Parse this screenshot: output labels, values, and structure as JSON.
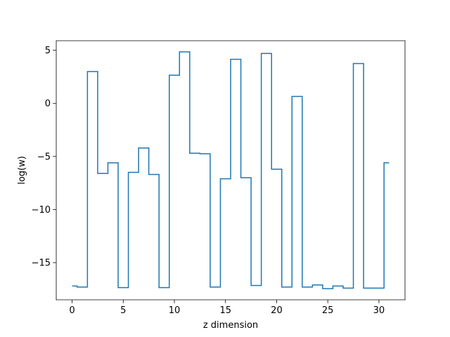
{
  "chart_data": {
    "type": "line",
    "drawstyle": "steps-mid",
    "title": "",
    "xlabel": "z dimension",
    "ylabel": "log(w)",
    "xlim": [
      -1.55,
      32.55
    ],
    "ylim": [
      -18.5,
      5.9
    ],
    "xticks": [
      0,
      5,
      10,
      15,
      20,
      25,
      30
    ],
    "yticks": [
      -15,
      -10,
      -5,
      0,
      5
    ],
    "ytick_labels": [
      "−15",
      "−10",
      "−5",
      "0",
      "5"
    ],
    "grid": false,
    "color": "#1f77b4",
    "series": [
      {
        "x": [
          0,
          1,
          2,
          3,
          4,
          5,
          6,
          7,
          8,
          9,
          10,
          11,
          12,
          13,
          14,
          15,
          16,
          17,
          18,
          19,
          20,
          21,
          22,
          23,
          24,
          25,
          26,
          27,
          28,
          29,
          30,
          31
        ],
        "y": [
          -17.2,
          -17.3,
          3.0,
          -6.6,
          -5.6,
          -17.35,
          -6.5,
          -4.2,
          -6.7,
          -17.35,
          2.65,
          4.85,
          -4.7,
          -4.75,
          -17.3,
          -7.1,
          4.15,
          -7.0,
          -17.15,
          4.7,
          -6.2,
          -17.3,
          0.65,
          -17.3,
          -17.1,
          -17.45,
          -17.2,
          -17.4,
          3.75,
          -17.4,
          -17.4,
          -5.6
        ]
      }
    ]
  }
}
